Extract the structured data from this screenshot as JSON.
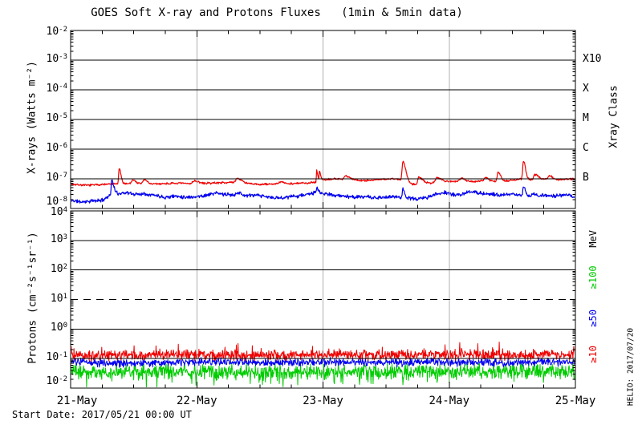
{
  "title": "GOES Soft X-ray and Protons Fluxes   (1min & 5min data)",
  "footer": {
    "start_date": "Start Date: 2017/05/21 00:00 UT"
  },
  "watermark": "HELIO: 2017/07/20",
  "colors": {
    "background": "#ffffff",
    "axis": "#000000",
    "day_gridline": "#b0b0b0",
    "xray_long": "#ee0000",
    "xray_short": "#0000ee",
    "proton_ge10": "#ee0000",
    "proton_ge50": "#0000ee",
    "proton_ge100": "#00cc00"
  },
  "x_axis": {
    "labels": [
      "21-May",
      "22-May",
      "23-May",
      "24-May",
      "25-May"
    ],
    "hours_total": 96,
    "minor_tick_hours": 6,
    "day_tick_hours": 24,
    "day_gridlines_hours": [
      24,
      48,
      72
    ]
  },
  "chart_data": [
    {
      "type": "line",
      "name": "xray-flux-panel",
      "ylabel": "X-rays (Watts m⁻²)",
      "ylim_log10": [
        -8,
        -2
      ],
      "y_exponent_ticks": [
        -2,
        -3,
        -4,
        -5,
        -6,
        -7,
        -8
      ],
      "grid": "horizontal-decades-plus-day-verticals",
      "right_axis_title": "Xray Class",
      "right_class_labels": [
        {
          "label": "X10",
          "exp": -3
        },
        {
          "label": "X",
          "exp": -4
        },
        {
          "label": "M",
          "exp": -5
        },
        {
          "label": "C",
          "exp": -6
        },
        {
          "label": "B",
          "exp": -7
        }
      ],
      "series": [
        {
          "name": "xray-long-wave",
          "color": "#ee0000",
          "width": 1.2,
          "noise_dex": 0.022,
          "noise_bias": 0,
          "seed": 7,
          "base_log10": [
            [
              0,
              -7.18
            ],
            [
              3,
              -7.22
            ],
            [
              6,
              -7.19
            ],
            [
              9,
              -7.17
            ],
            [
              12,
              -7.15
            ],
            [
              15,
              -7.18
            ],
            [
              18,
              -7.16
            ],
            [
              21,
              -7.15
            ],
            [
              24,
              -7.17
            ],
            [
              27,
              -7.14
            ],
            [
              30,
              -7.12
            ],
            [
              33,
              -7.16
            ],
            [
              36,
              -7.19
            ],
            [
              39,
              -7.17
            ],
            [
              42,
              -7.16
            ],
            [
              45,
              -7.14
            ],
            [
              47,
              -7.1
            ],
            [
              48,
              -7.04
            ],
            [
              50,
              -7.0
            ],
            [
              53,
              -7.03
            ],
            [
              56,
              -7.06
            ],
            [
              59,
              -7.02
            ],
            [
              61,
              -7.0
            ],
            [
              63,
              -7.02
            ],
            [
              65,
              -7.18
            ],
            [
              67,
              -7.2
            ],
            [
              69,
              -7.12
            ],
            [
              71,
              -7.1
            ],
            [
              73,
              -7.08
            ],
            [
              76,
              -7.1
            ],
            [
              79,
              -7.06
            ],
            [
              81,
              -7.1
            ],
            [
              84,
              -7.05
            ],
            [
              86,
              -7.0
            ],
            [
              88,
              -7.03
            ],
            [
              90,
              -7.0
            ],
            [
              93,
              -7.02
            ],
            [
              96,
              -7.0
            ]
          ],
          "spikes": [
            [
              9.2,
              0.52,
              0.08,
              0.35
            ],
            [
              11.8,
              0.12,
              0.2,
              0.5
            ],
            [
              14.0,
              0.14,
              0.25,
              0.6
            ],
            [
              23.5,
              0.1,
              0.3,
              0.8
            ],
            [
              31.7,
              0.16,
              0.3,
              0.9
            ],
            [
              40.0,
              0.06,
              0.3,
              0.6
            ],
            [
              46.8,
              0.38,
              0.06,
              0.2
            ],
            [
              47.3,
              0.33,
              0.06,
              0.25
            ],
            [
              52.3,
              0.12,
              0.3,
              0.8
            ],
            [
              63.2,
              0.62,
              0.15,
              0.55
            ],
            [
              66.2,
              0.25,
              0.2,
              0.8
            ],
            [
              69.7,
              0.16,
              0.25,
              0.8
            ],
            [
              74.3,
              0.12,
              0.3,
              0.7
            ],
            [
              78.9,
              0.12,
              0.2,
              0.5
            ],
            [
              81.3,
              0.3,
              0.2,
              0.5
            ],
            [
              86.1,
              0.6,
              0.12,
              0.4
            ],
            [
              88.3,
              0.18,
              0.2,
              0.6
            ],
            [
              91.0,
              0.12,
              0.2,
              0.5
            ]
          ]
        },
        {
          "name": "xray-short-wave",
          "color": "#0000ee",
          "width": 1.2,
          "noise_dex": 0.04,
          "noise_bias": 0,
          "seed": 11,
          "base_log10": [
            [
              0,
              -7.72
            ],
            [
              2,
              -7.78
            ],
            [
              4,
              -7.75
            ],
            [
              6,
              -7.72
            ],
            [
              7.5,
              -7.55
            ],
            [
              8.2,
              -7.4
            ],
            [
              9,
              -7.5
            ],
            [
              10.5,
              -7.46
            ],
            [
              12,
              -7.52
            ],
            [
              14,
              -7.5
            ],
            [
              16,
              -7.55
            ],
            [
              18,
              -7.62
            ],
            [
              20,
              -7.58
            ],
            [
              22,
              -7.62
            ],
            [
              24,
              -7.6
            ],
            [
              26,
              -7.55
            ],
            [
              27.5,
              -7.48
            ],
            [
              29,
              -7.52
            ],
            [
              31,
              -7.55
            ],
            [
              33,
              -7.58
            ],
            [
              35,
              -7.55
            ],
            [
              37,
              -7.6
            ],
            [
              39,
              -7.65
            ],
            [
              41,
              -7.62
            ],
            [
              43,
              -7.58
            ],
            [
              45,
              -7.52
            ],
            [
              46.5,
              -7.46
            ],
            [
              48,
              -7.5
            ],
            [
              50,
              -7.55
            ],
            [
              52,
              -7.58
            ],
            [
              54,
              -7.62
            ],
            [
              56,
              -7.6
            ],
            [
              58,
              -7.65
            ],
            [
              60,
              -7.62
            ],
            [
              62,
              -7.6
            ],
            [
              64,
              -7.65
            ],
            [
              66,
              -7.68
            ],
            [
              68,
              -7.62
            ],
            [
              69.5,
              -7.52
            ],
            [
              71,
              -7.46
            ],
            [
              72.5,
              -7.52
            ],
            [
              74,
              -7.55
            ],
            [
              75.5,
              -7.46
            ],
            [
              77,
              -7.44
            ],
            [
              78.5,
              -7.5
            ],
            [
              80,
              -7.52
            ],
            [
              82,
              -7.55
            ],
            [
              84,
              -7.52
            ],
            [
              86,
              -7.55
            ],
            [
              88,
              -7.6
            ],
            [
              90,
              -7.55
            ],
            [
              92,
              -7.58
            ],
            [
              94,
              -7.55
            ],
            [
              96,
              -7.6
            ]
          ],
          "spikes": [
            [
              7.8,
              0.42,
              0.1,
              0.3
            ],
            [
              31.7,
              0.1,
              0.3,
              0.8
            ],
            [
              46.9,
              0.15,
              0.1,
              0.3
            ],
            [
              63.2,
              0.3,
              0.1,
              0.3
            ],
            [
              86.1,
              0.3,
              0.1,
              0.35
            ],
            [
              88.0,
              0.1,
              0.2,
              0.5
            ]
          ]
        }
      ]
    },
    {
      "type": "line",
      "name": "proton-flux-panel",
      "ylabel": "Protons (cm⁻²s⁻¹sr⁻¹)",
      "ylim_log10": [
        -2,
        4
      ],
      "y_exponent_ticks": [
        4,
        3,
        2,
        1,
        0,
        -1,
        -2
      ],
      "grid": "horizontal-decades-plus-day-verticals",
      "dashed_threshold_log10": 1,
      "right_unit_legend": [
        {
          "label": "MeV",
          "color": "#000000",
          "center_exp": 3.05
        },
        {
          "label": "≥100",
          "color": "#00cc00",
          "center_exp": 1.75
        },
        {
          "label": "≥50",
          "color": "#0000ee",
          "center_exp": 0.35
        },
        {
          "label": "≥10",
          "color": "#ee0000",
          "center_exp": -0.85
        }
      ],
      "series": [
        {
          "name": "protons-ge-100MeV",
          "color": "#00cc00",
          "width": 1,
          "noise_dex": 0.16,
          "noise_bias": -1,
          "seed": 23,
          "base_log10": [
            [
              0,
              -1.42
            ],
            [
              10,
              -1.46
            ],
            [
              20,
              -1.42
            ],
            [
              30,
              -1.45
            ],
            [
              40,
              -1.42
            ],
            [
              50,
              -1.45
            ],
            [
              60,
              -1.43
            ],
            [
              70,
              -1.45
            ],
            [
              80,
              -1.42
            ],
            [
              96,
              -1.44
            ]
          ],
          "spikes": []
        },
        {
          "name": "protons-ge-50MeV",
          "color": "#0000ee",
          "width": 1,
          "noise_dex": 0.09,
          "noise_bias": 0,
          "seed": 31,
          "base_log10": [
            [
              0,
              -1.12
            ],
            [
              12,
              -1.15
            ],
            [
              24,
              -1.12
            ],
            [
              36,
              -1.14
            ],
            [
              48,
              -1.12
            ],
            [
              60,
              -1.14
            ],
            [
              72,
              -1.12
            ],
            [
              84,
              -1.13
            ],
            [
              96,
              -1.12
            ]
          ],
          "spikes": []
        },
        {
          "name": "protons-ge-10MeV",
          "color": "#ee0000",
          "width": 1,
          "noise_dex": 0.12,
          "noise_bias": 1,
          "seed": 41,
          "base_log10": [
            [
              0,
              -0.88
            ],
            [
              12,
              -0.9
            ],
            [
              24,
              -0.87
            ],
            [
              36,
              -0.89
            ],
            [
              48,
              -0.87
            ],
            [
              60,
              -0.88
            ],
            [
              72,
              -0.87
            ],
            [
              84,
              -0.88
            ],
            [
              96,
              -0.87
            ]
          ],
          "spikes": []
        }
      ]
    }
  ]
}
